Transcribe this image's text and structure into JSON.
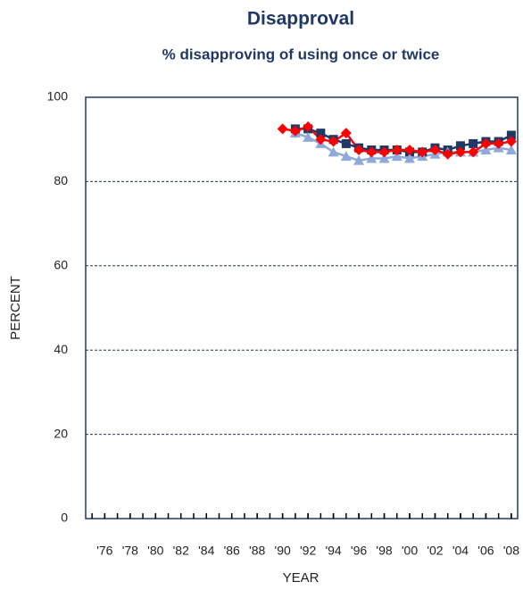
{
  "chart_data": {
    "type": "line",
    "title": "Disapproval",
    "subtitle": "% disapproving of using once or twice",
    "y_label": "PERCENT",
    "x_label": "YEAR",
    "x": [
      1990,
      1991,
      1992,
      1993,
      1994,
      1995,
      1996,
      1997,
      1998,
      1999,
      2000,
      2001,
      2002,
      2003,
      2004,
      2005,
      2006,
      2007,
      2008
    ],
    "series": [
      {
        "color": "#1f3864",
        "marker": "square",
        "values": [
          null,
          92.5,
          92.5,
          91.5,
          90,
          89,
          88,
          87.5,
          87.5,
          87.5,
          87,
          87,
          88,
          87.5,
          88.5,
          89,
          89.5,
          89.5,
          91
        ]
      },
      {
        "color": "#8eaadb",
        "marker": "triangle",
        "values": [
          null,
          91.5,
          90.5,
          89,
          87,
          86,
          85,
          85.5,
          85.5,
          86,
          85.5,
          86,
          86.5,
          87,
          87,
          87,
          87.5,
          88,
          87.5
        ]
      },
      {
        "color": "#ff0000",
        "marker": "diamond",
        "values": [
          92.5,
          92,
          93,
          90,
          89.5,
          91.5,
          87.5,
          87,
          87,
          87.5,
          87.5,
          87,
          87.5,
          86.5,
          87,
          87,
          89,
          89,
          89.5
        ]
      }
    ],
    "xlim": [
      1974.5,
      2008.5
    ],
    "xticks": [
      {
        "value": 1976,
        "label": "'76"
      },
      {
        "value": 1978,
        "label": "'78"
      },
      {
        "value": 1980,
        "label": "'80"
      },
      {
        "value": 1982,
        "label": "'82"
      },
      {
        "value": 1984,
        "label": "'84"
      },
      {
        "value": 1986,
        "label": "'86"
      },
      {
        "value": 1988,
        "label": "'88"
      },
      {
        "value": 1990,
        "label": "'90"
      },
      {
        "value": 1992,
        "label": "'92"
      },
      {
        "value": 1994,
        "label": "'94"
      },
      {
        "value": 1996,
        "label": "'96"
      },
      {
        "value": 1998,
        "label": "'98"
      },
      {
        "value": 2000,
        "label": "'00"
      },
      {
        "value": 2002,
        "label": "'02"
      },
      {
        "value": 2004,
        "label": "'04"
      },
      {
        "value": 2006,
        "label": "'06"
      },
      {
        "value": 2008,
        "label": "'08"
      }
    ],
    "ylim": [
      0,
      100
    ],
    "yticks": [
      0,
      20,
      40,
      60,
      80,
      100
    ],
    "grid": true
  }
}
